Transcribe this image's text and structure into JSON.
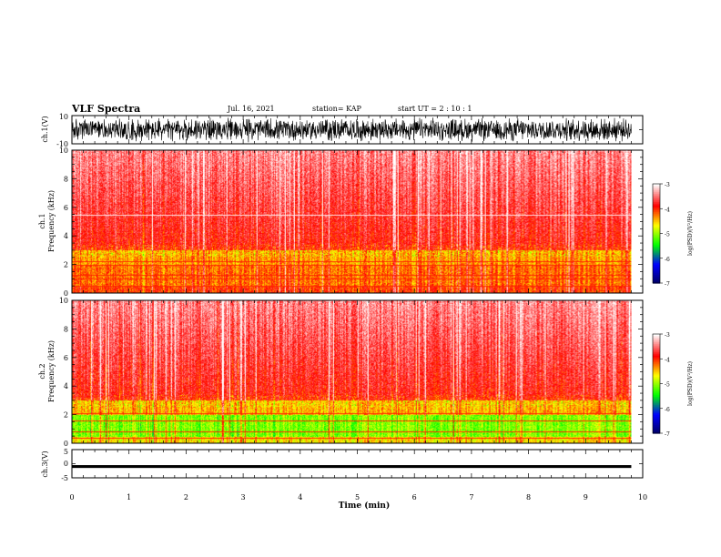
{
  "header": {
    "title": "VLF Spectra",
    "date": "Jul. 16, 2021",
    "station": "station= KAP",
    "start_ut": "start UT =  2 : 10 : 1"
  },
  "chart_data": [
    {
      "type": "line",
      "name": "ch1-waveform",
      "ylabel": "ch.1(V)",
      "ylim": [
        -10,
        10
      ],
      "y_ticks": [
        "10",
        "-10"
      ],
      "xlim": [
        0,
        10
      ],
      "x_end_data": 9.8,
      "description_level": "dense noise spanning about -9 to +9 V"
    },
    {
      "type": "heatmap",
      "name": "ch1-spectrogram",
      "ylabel": "ch.1\nFrequency (kHz)",
      "ylabel_line1": "ch.1",
      "ylabel_line2": "Frequency (kHz)",
      "ylim": [
        0,
        10
      ],
      "y_ticks": [
        "0",
        "2",
        "4",
        "6",
        "8",
        "10"
      ],
      "xlim": [
        0,
        10
      ],
      "x_end_data": 9.8,
      "colorbar": {
        "label": "log(PSD)(V²/Hz)",
        "range": [
          -7,
          -3
        ],
        "ticks": [
          "-3",
          "-4",
          "-5",
          "-6",
          "-7"
        ],
        "colors": [
          "#ffffff",
          "#ff0000",
          "#ffff00",
          "#00ff00",
          "#0000ff",
          "#000080"
        ]
      },
      "bands": [
        {
          "from": 0,
          "to": 1.5,
          "level": "yellow-red"
        },
        {
          "from": 1.5,
          "to": 3,
          "level": "yellow"
        },
        {
          "from": 3,
          "to": 10,
          "level": "red-white"
        }
      ],
      "lines_khz": [
        0.5,
        1.0,
        1.3,
        2.0,
        2.2,
        5.5
      ]
    },
    {
      "type": "heatmap",
      "name": "ch2-spectrogram",
      "ylabel_line1": "ch.2",
      "ylabel_line2": "Frequency (kHz)",
      "ylim": [
        0,
        10
      ],
      "y_ticks": [
        "0",
        "2",
        "4",
        "6",
        "8",
        "10"
      ],
      "xlim": [
        0,
        10
      ],
      "x_end_data": 9.8,
      "colorbar": {
        "label": "log(PSD)(V²/Hz)",
        "range": [
          -7,
          -3
        ],
        "ticks": [
          "-3",
          "-4",
          "-5",
          "-6",
          "-7"
        ]
      },
      "bands": [
        {
          "from": 0,
          "to": 2,
          "level": "green-yellow"
        },
        {
          "from": 2,
          "to": 3,
          "level": "yellow"
        },
        {
          "from": 3,
          "to": 10,
          "level": "red-white"
        }
      ],
      "lines_khz": [
        0.4,
        0.8,
        1.6,
        2.1
      ]
    },
    {
      "type": "line",
      "name": "ch3-waveform",
      "ylabel": "ch.3(V)",
      "ylim": [
        -5,
        5
      ],
      "y_ticks": [
        "5",
        "0",
        "-5"
      ],
      "xlim": [
        0,
        10
      ],
      "x_end_data": 9.8,
      "band_center": -1,
      "band_halfwidth": 0.5,
      "xlabel": "Time (min)",
      "x_ticks": [
        "0",
        "1",
        "2",
        "3",
        "4",
        "5",
        "6",
        "7",
        "8",
        "9",
        "10"
      ]
    }
  ]
}
